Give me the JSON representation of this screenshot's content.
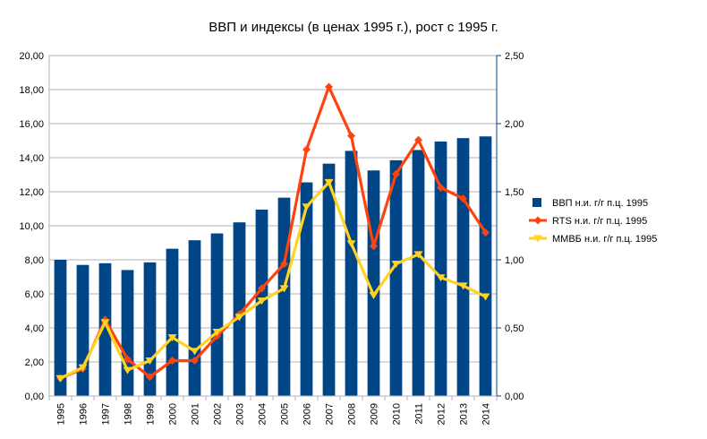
{
  "chart_data": {
    "type": "bar",
    "title": "ВВП и индексы (в ценах 1995 г.), рост с 1995 г.",
    "categories": [
      "1995",
      "1996",
      "1997",
      "1998",
      "1999",
      "2000",
      "2001",
      "2002",
      "2003",
      "2004",
      "2005",
      "2006",
      "2007",
      "2008",
      "2009",
      "2010",
      "2011",
      "2012",
      "2013",
      "2014"
    ],
    "y_left": {
      "min": 0,
      "max": 20,
      "step": 2,
      "ticks": [
        "0,00",
        "2,00",
        "4,00",
        "6,00",
        "8,00",
        "10,00",
        "12,00",
        "14,00",
        "16,00",
        "18,00",
        "20,00"
      ]
    },
    "y_right": {
      "min": 0,
      "max": 2.5,
      "step": 0.5,
      "ticks": [
        "0,00",
        "0,50",
        "1,00",
        "1,50",
        "2,00",
        "2,50"
      ]
    },
    "grid": "horizontal",
    "legend_position": "right",
    "series": [
      {
        "name": "ВВП н.и. г/г п.ц. 1995",
        "kind": "bar",
        "axis": "left",
        "color": "#004586",
        "values": [
          8.0,
          7.7,
          7.8,
          7.4,
          7.85,
          8.65,
          9.15,
          9.55,
          10.2,
          10.95,
          11.65,
          12.55,
          13.65,
          14.4,
          13.25,
          13.85,
          14.45,
          14.95,
          15.15,
          15.25
        ]
      },
      {
        "name": "RTS н.и. г/г п.ц. 1995",
        "kind": "line",
        "axis": "right",
        "color": "#ff420e",
        "marker": "diamond",
        "values": [
          0.13,
          0.2,
          0.56,
          0.27,
          0.14,
          0.26,
          0.26,
          0.44,
          0.6,
          0.79,
          0.97,
          1.81,
          2.27,
          1.91,
          1.1,
          1.63,
          1.88,
          1.53,
          1.45,
          1.2
        ]
      },
      {
        "name": "ММВБ н.и. г/г п.ц. 1995",
        "kind": "line",
        "axis": "right",
        "color": "#ffd320",
        "marker": "triangle-down",
        "values": [
          0.13,
          0.21,
          0.54,
          0.19,
          0.26,
          0.43,
          0.33,
          0.47,
          0.58,
          0.7,
          0.79,
          1.39,
          1.57,
          1.12,
          0.74,
          0.97,
          1.04,
          0.87,
          0.81,
          0.73
        ]
      }
    ]
  }
}
